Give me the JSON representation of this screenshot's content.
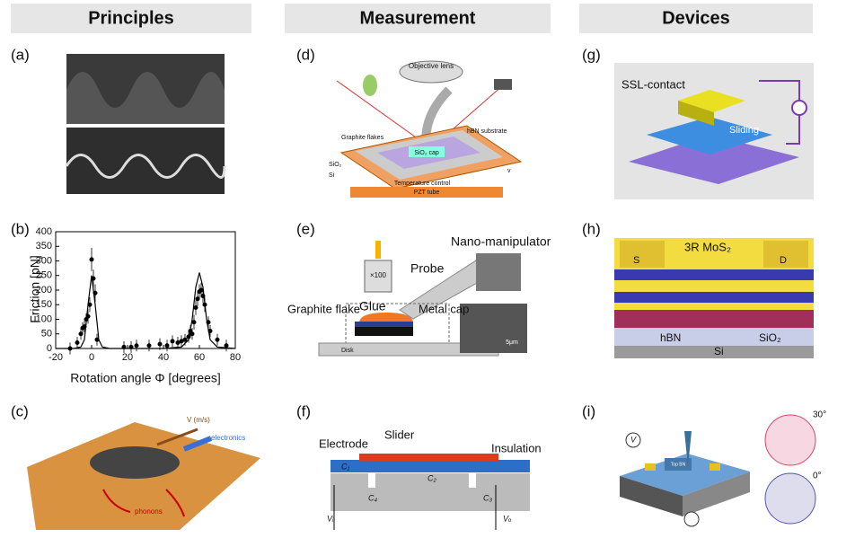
{
  "headers": [
    "Principles",
    "Measurement",
    "Devices"
  ],
  "panel_labels": [
    "(a)",
    "(b)",
    "(c)",
    "(d)",
    "(e)",
    "(f)",
    "(g)",
    "(h)",
    "(i)"
  ],
  "panel_c": {
    "velocity": "V (m/s)",
    "electronics": "electronics",
    "phonons": "phonons"
  },
  "panel_d": {
    "objective": "Objective lens",
    "graphite": "Graphite flakes",
    "hbn": "hBN substrate",
    "cap": "SiO₂ cap",
    "sio2": "SiO₂",
    "si": "Si",
    "temp": "Temperature control",
    "pzt": "PZT tube",
    "v": "v"
  },
  "panel_e": {
    "manipulator": "Nano-manipulator",
    "mag": "×100",
    "probe": "Probe",
    "glue": "Glue",
    "graphite": "Graphite flake",
    "metal": "Metal cap",
    "scale": "5μm",
    "disk": "Disk"
  },
  "panel_f": {
    "electrode": "Electrode",
    "slider": "Slider",
    "insulation": "Insulation",
    "c1": "C₁",
    "c2": "C₂",
    "c3": "C₃",
    "c4": "C₄",
    "vi": "Vᵢ",
    "vo": "Vₒ"
  },
  "panel_g": {
    "contact": "SSL-contact",
    "sliding": "Sliding"
  },
  "panel_h": {
    "s": "S",
    "d": "D",
    "mos2": "3R MoS₂",
    "hbn": "hBN",
    "sio2": "SiO₂",
    "si": "Si"
  },
  "panel_i": {
    "v": "V",
    "a30": "30°",
    "a0": "0°",
    "topbn": "Top BN"
  },
  "chart_data": {
    "type": "scatter",
    "x_label": "Rotation angle Φ [degrees]",
    "y_label": "Friction [pN]",
    "xlim": [
      -20,
      80
    ],
    "xticks": [
      -20,
      0,
      20,
      40,
      60,
      80
    ],
    "ylim": [
      0,
      400
    ],
    "yticks": [
      0,
      50,
      100,
      150,
      200,
      250,
      300,
      350,
      400
    ],
    "series": [
      {
        "style": "points",
        "color": "#000000",
        "x": [
          -12,
          -8,
          -6,
          -5,
          -4,
          -3,
          -2,
          -1,
          0,
          1,
          2,
          3,
          18,
          22,
          25,
          32,
          38,
          42,
          45,
          48,
          50,
          52,
          54,
          55,
          56,
          57,
          58,
          59,
          60,
          61,
          62,
          63,
          65,
          66,
          70,
          75
        ],
        "values": [
          0,
          20,
          50,
          70,
          75,
          100,
          110,
          150,
          305,
          240,
          190,
          30,
          5,
          5,
          10,
          10,
          15,
          10,
          25,
          20,
          25,
          30,
          40,
          60,
          50,
          90,
          140,
          170,
          195,
          200,
          180,
          150,
          90,
          60,
          30,
          10
        ],
        "errors": [
          20,
          20,
          20,
          20,
          20,
          20,
          25,
          25,
          40,
          30,
          30,
          20,
          20,
          20,
          20,
          20,
          20,
          20,
          20,
          20,
          20,
          20,
          20,
          20,
          20,
          25,
          25,
          25,
          25,
          25,
          25,
          25,
          20,
          20,
          20,
          20
        ]
      },
      {
        "style": "line",
        "color": "#000000",
        "x": [
          -20,
          -10,
          -6,
          -4,
          -2,
          0,
          2,
          4,
          6,
          10,
          20,
          30,
          40,
          50,
          54,
          56,
          58,
          60,
          62,
          64,
          66,
          70,
          80
        ],
        "values": [
          0,
          0,
          5,
          30,
          150,
          250,
          150,
          30,
          5,
          0,
          0,
          0,
          0,
          5,
          30,
          100,
          210,
          260,
          210,
          100,
          30,
          5,
          0
        ]
      }
    ]
  }
}
